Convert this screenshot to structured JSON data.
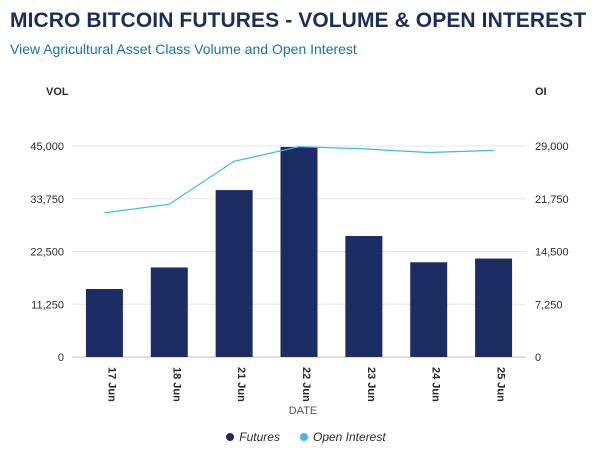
{
  "header": {
    "title": "MICRO BITCOIN FUTURES - VOLUME & OPEN INTEREST",
    "subtitle_link": "View Agricultural Asset Class Volume and Open Interest"
  },
  "chart_data": {
    "type": "bar",
    "categories": [
      "17 Jun",
      "18 Jun",
      "21 Jun",
      "22 Jun",
      "23 Jun",
      "24 Jun",
      "25 Jun"
    ],
    "series": [
      {
        "name": "Futures",
        "type": "bar",
        "axis": "left",
        "color": "#1b2d63",
        "values": [
          14500,
          19100,
          35600,
          44800,
          25800,
          20200,
          21000
        ]
      },
      {
        "name": "Open Interest",
        "type": "line",
        "axis": "right",
        "color": "#3db8f0",
        "values": [
          19800,
          21000,
          26900,
          28900,
          28600,
          28100,
          28400
        ]
      }
    ],
    "xlabel": "DATE",
    "ylabel_left": "VOL",
    "ylabel_right": "OI",
    "ylim_left": [
      0,
      45000
    ],
    "ylim_right": [
      0,
      29000
    ],
    "yticks_left": [
      "0",
      "11,250",
      "22,500",
      "33,750",
      "45,000"
    ],
    "yticks_right": [
      "0",
      "7,250",
      "14,500",
      "21,750",
      "29,000"
    ],
    "grid": true,
    "legend_position": "bottom-center"
  }
}
